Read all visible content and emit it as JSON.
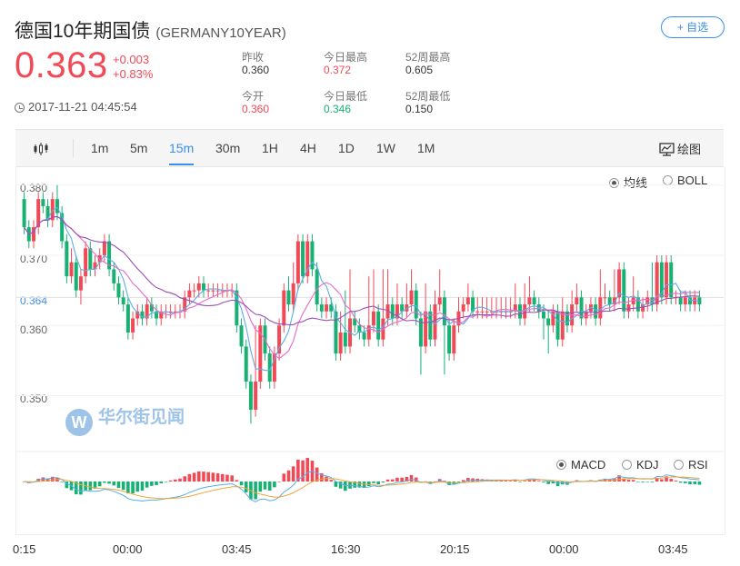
{
  "header": {
    "title": "德国10年期国债",
    "code": "(GERMANY10YEAR)",
    "price": "0.363",
    "change_abs": "+0.003",
    "change_pct": "+0.83%",
    "timestamp": "2017-11-21 04:45:54",
    "watch_label": "+ 自选"
  },
  "stats": {
    "prev_close_label": "昨收",
    "prev_close": "0.360",
    "open_label": "今开",
    "open": "0.360",
    "high_label": "今日最高",
    "high": "0.372",
    "low_label": "今日最低",
    "low": "0.346",
    "w52_high_label": "52周最高",
    "w52_high": "0.605",
    "w52_low_label": "52周最低",
    "w52_low": "0.150"
  },
  "toolbar": {
    "tabs": [
      "1m",
      "5m",
      "15m",
      "30m",
      "1H",
      "4H",
      "1D",
      "1W",
      "1M"
    ],
    "active": "15m",
    "draw_label": "绘图"
  },
  "overlay": {
    "ma_label": "均线",
    "boll_label": "BOLL",
    "selected": "均线"
  },
  "sub": {
    "macd_label": "MACD",
    "kdj_label": "KDJ",
    "rsi_label": "RSI",
    "selected": "MACD"
  },
  "watermark": {
    "text": "华尔街见闻"
  },
  "colors": {
    "up": "#f24957",
    "down": "#16b173",
    "accent": "#3b8df0"
  },
  "chart_data": {
    "type": "candlestick",
    "y_ticks": [
      "0.380",
      "0.370",
      "0.360",
      "0.350"
    ],
    "y_tick_values": [
      0.38,
      0.37,
      0.36,
      0.35
    ],
    "current_value_label": "0.364",
    "current_value": 0.364,
    "ylim": [
      0.3445,
      0.381
    ],
    "x_ticks": [
      "0:15",
      "00:00",
      "03:45",
      "16:30",
      "20:15",
      "00:00",
      "03:45"
    ],
    "candle_count": 144,
    "candles": [
      [
        0.378,
        0.374,
        0.379,
        0.373
      ],
      [
        0.374,
        0.372,
        0.375,
        0.371
      ],
      [
        0.372,
        0.374,
        0.375,
        0.371
      ],
      [
        0.374,
        0.378,
        0.379,
        0.373
      ],
      [
        0.378,
        0.377,
        0.379,
        0.376
      ],
      [
        0.377,
        0.375,
        0.378,
        0.374
      ],
      [
        0.375,
        0.378,
        0.379,
        0.374
      ],
      [
        0.378,
        0.376,
        0.38,
        0.375
      ],
      [
        0.376,
        0.372,
        0.377,
        0.371
      ],
      [
        0.372,
        0.367,
        0.373,
        0.366
      ],
      [
        0.367,
        0.369,
        0.371,
        0.366
      ],
      [
        0.369,
        0.365,
        0.37,
        0.364
      ],
      [
        0.365,
        0.367,
        0.368,
        0.363
      ],
      [
        0.367,
        0.371,
        0.372,
        0.366
      ],
      [
        0.371,
        0.368,
        0.372,
        0.367
      ],
      [
        0.368,
        0.369,
        0.37,
        0.367
      ],
      [
        0.369,
        0.37,
        0.371,
        0.368
      ],
      [
        0.37,
        0.372,
        0.373,
        0.369
      ],
      [
        0.372,
        0.368,
        0.373,
        0.367
      ],
      [
        0.368,
        0.366,
        0.369,
        0.365
      ],
      [
        0.366,
        0.364,
        0.367,
        0.363
      ],
      [
        0.364,
        0.363,
        0.365,
        0.362
      ],
      [
        0.363,
        0.359,
        0.364,
        0.358
      ],
      [
        0.359,
        0.361,
        0.362,
        0.358
      ],
      [
        0.361,
        0.362,
        0.363,
        0.36
      ],
      [
        0.362,
        0.361,
        0.363,
        0.36
      ],
      [
        0.361,
        0.363,
        0.364,
        0.36
      ],
      [
        0.363,
        0.362,
        0.364,
        0.361
      ],
      [
        0.362,
        0.361,
        0.363,
        0.36
      ],
      [
        0.361,
        0.362,
        0.363,
        0.36
      ],
      [
        0.362,
        0.362,
        0.363,
        0.361
      ],
      [
        0.362,
        0.362,
        0.363,
        0.361
      ],
      [
        0.362,
        0.362,
        0.363,
        0.361
      ],
      [
        0.362,
        0.362,
        0.363,
        0.361
      ],
      [
        0.362,
        0.364,
        0.365,
        0.361
      ],
      [
        0.364,
        0.365,
        0.366,
        0.363
      ],
      [
        0.365,
        0.365,
        0.366,
        0.364
      ],
      [
        0.365,
        0.366,
        0.367,
        0.364
      ],
      [
        0.366,
        0.365,
        0.367,
        0.364
      ],
      [
        0.365,
        0.365,
        0.366,
        0.364
      ],
      [
        0.365,
        0.365,
        0.366,
        0.364
      ],
      [
        0.365,
        0.365,
        0.366,
        0.364
      ],
      [
        0.365,
        0.365,
        0.366,
        0.364
      ],
      [
        0.365,
        0.365,
        0.366,
        0.364
      ],
      [
        0.365,
        0.365,
        0.366,
        0.364
      ],
      [
        0.365,
        0.36,
        0.366,
        0.359
      ],
      [
        0.36,
        0.357,
        0.361,
        0.356
      ],
      [
        0.357,
        0.352,
        0.358,
        0.351
      ],
      [
        0.352,
        0.348,
        0.353,
        0.346
      ],
      [
        0.348,
        0.352,
        0.36,
        0.347
      ],
      [
        0.352,
        0.36,
        0.361,
        0.351
      ],
      [
        0.36,
        0.356,
        0.361,
        0.355
      ],
      [
        0.356,
        0.352,
        0.357,
        0.351
      ],
      [
        0.352,
        0.356,
        0.357,
        0.351
      ],
      [
        0.356,
        0.36,
        0.361,
        0.355
      ],
      [
        0.36,
        0.365,
        0.366,
        0.359
      ],
      [
        0.365,
        0.363,
        0.367,
        0.362
      ],
      [
        0.363,
        0.366,
        0.369,
        0.362
      ],
      [
        0.366,
        0.372,
        0.373,
        0.365
      ],
      [
        0.372,
        0.367,
        0.373,
        0.366
      ],
      [
        0.367,
        0.372,
        0.373,
        0.366
      ],
      [
        0.372,
        0.368,
        0.373,
        0.367
      ],
      [
        0.368,
        0.363,
        0.369,
        0.362
      ],
      [
        0.363,
        0.362,
        0.364,
        0.361
      ],
      [
        0.362,
        0.363,
        0.364,
        0.361
      ],
      [
        0.363,
        0.362,
        0.364,
        0.361
      ],
      [
        0.362,
        0.356,
        0.363,
        0.355
      ],
      [
        0.356,
        0.359,
        0.362,
        0.355
      ],
      [
        0.359,
        0.357,
        0.365,
        0.356
      ],
      [
        0.357,
        0.361,
        0.368,
        0.356
      ],
      [
        0.361,
        0.36,
        0.362,
        0.359
      ],
      [
        0.36,
        0.359,
        0.361,
        0.358
      ],
      [
        0.359,
        0.358,
        0.36,
        0.357
      ],
      [
        0.358,
        0.36,
        0.367,
        0.357
      ],
      [
        0.36,
        0.362,
        0.368,
        0.359
      ],
      [
        0.362,
        0.358,
        0.363,
        0.357
      ],
      [
        0.358,
        0.361,
        0.368,
        0.357
      ],
      [
        0.361,
        0.363,
        0.368,
        0.36
      ],
      [
        0.363,
        0.361,
        0.364,
        0.36
      ],
      [
        0.361,
        0.363,
        0.366,
        0.36
      ],
      [
        0.363,
        0.362,
        0.364,
        0.361
      ],
      [
        0.362,
        0.363,
        0.366,
        0.361
      ],
      [
        0.363,
        0.365,
        0.368,
        0.362
      ],
      [
        0.365,
        0.361,
        0.366,
        0.36
      ],
      [
        0.361,
        0.357,
        0.362,
        0.353
      ],
      [
        0.357,
        0.362,
        0.366,
        0.356
      ],
      [
        0.362,
        0.358,
        0.363,
        0.357
      ],
      [
        0.358,
        0.363,
        0.365,
        0.357
      ],
      [
        0.363,
        0.364,
        0.368,
        0.362
      ],
      [
        0.364,
        0.36,
        0.365,
        0.353
      ],
      [
        0.36,
        0.356,
        0.361,
        0.355
      ],
      [
        0.356,
        0.36,
        0.361,
        0.355
      ],
      [
        0.36,
        0.362,
        0.364,
        0.359
      ],
      [
        0.362,
        0.363,
        0.364,
        0.361
      ],
      [
        0.363,
        0.364,
        0.366,
        0.362
      ],
      [
        0.364,
        0.362,
        0.365,
        0.361
      ],
      [
        0.362,
        0.362,
        0.364,
        0.361
      ],
      [
        0.362,
        0.362,
        0.364,
        0.361
      ],
      [
        0.362,
        0.362,
        0.364,
        0.361
      ],
      [
        0.362,
        0.362,
        0.364,
        0.361
      ],
      [
        0.362,
        0.362,
        0.364,
        0.361
      ],
      [
        0.362,
        0.362,
        0.364,
        0.361
      ],
      [
        0.362,
        0.362,
        0.364,
        0.361
      ],
      [
        0.362,
        0.362,
        0.364,
        0.361
      ],
      [
        0.362,
        0.363,
        0.366,
        0.361
      ],
      [
        0.363,
        0.361,
        0.364,
        0.36
      ],
      [
        0.361,
        0.363,
        0.366,
        0.36
      ],
      [
        0.363,
        0.364,
        0.367,
        0.362
      ],
      [
        0.364,
        0.363,
        0.365,
        0.362
      ],
      [
        0.363,
        0.362,
        0.364,
        0.361
      ],
      [
        0.362,
        0.361,
        0.363,
        0.358
      ],
      [
        0.361,
        0.36,
        0.362,
        0.356
      ],
      [
        0.36,
        0.362,
        0.363,
        0.359
      ],
      [
        0.362,
        0.358,
        0.363,
        0.357
      ],
      [
        0.358,
        0.362,
        0.364,
        0.357
      ],
      [
        0.362,
        0.36,
        0.363,
        0.359
      ],
      [
        0.36,
        0.363,
        0.365,
        0.359
      ],
      [
        0.363,
        0.364,
        0.366,
        0.362
      ],
      [
        0.364,
        0.361,
        0.365,
        0.36
      ],
      [
        0.361,
        0.362,
        0.363,
        0.36
      ],
      [
        0.362,
        0.363,
        0.364,
        0.361
      ],
      [
        0.363,
        0.361,
        0.364,
        0.36
      ],
      [
        0.361,
        0.364,
        0.368,
        0.36
      ],
      [
        0.364,
        0.364,
        0.366,
        0.363
      ],
      [
        0.364,
        0.363,
        0.365,
        0.362
      ],
      [
        0.363,
        0.364,
        0.368,
        0.362
      ],
      [
        0.364,
        0.368,
        0.369,
        0.363
      ],
      [
        0.368,
        0.362,
        0.369,
        0.361
      ],
      [
        0.362,
        0.363,
        0.364,
        0.361
      ],
      [
        0.363,
        0.364,
        0.367,
        0.362
      ],
      [
        0.364,
        0.362,
        0.365,
        0.361
      ],
      [
        0.362,
        0.363,
        0.364,
        0.361
      ],
      [
        0.363,
        0.364,
        0.365,
        0.362
      ],
      [
        0.364,
        0.363,
        0.369,
        0.362
      ],
      [
        0.363,
        0.369,
        0.37,
        0.362
      ],
      [
        0.369,
        0.364,
        0.37,
        0.363
      ],
      [
        0.364,
        0.369,
        0.37,
        0.363
      ],
      [
        0.369,
        0.364,
        0.37,
        0.363
      ],
      [
        0.364,
        0.364,
        0.365,
        0.363
      ],
      [
        0.364,
        0.363,
        0.365,
        0.362
      ],
      [
        0.363,
        0.364,
        0.365,
        0.362
      ],
      [
        0.364,
        0.363,
        0.365,
        0.362
      ],
      [
        0.363,
        0.364,
        0.365,
        0.362
      ],
      [
        0.364,
        0.363,
        0.365,
        0.362
      ]
    ]
  }
}
